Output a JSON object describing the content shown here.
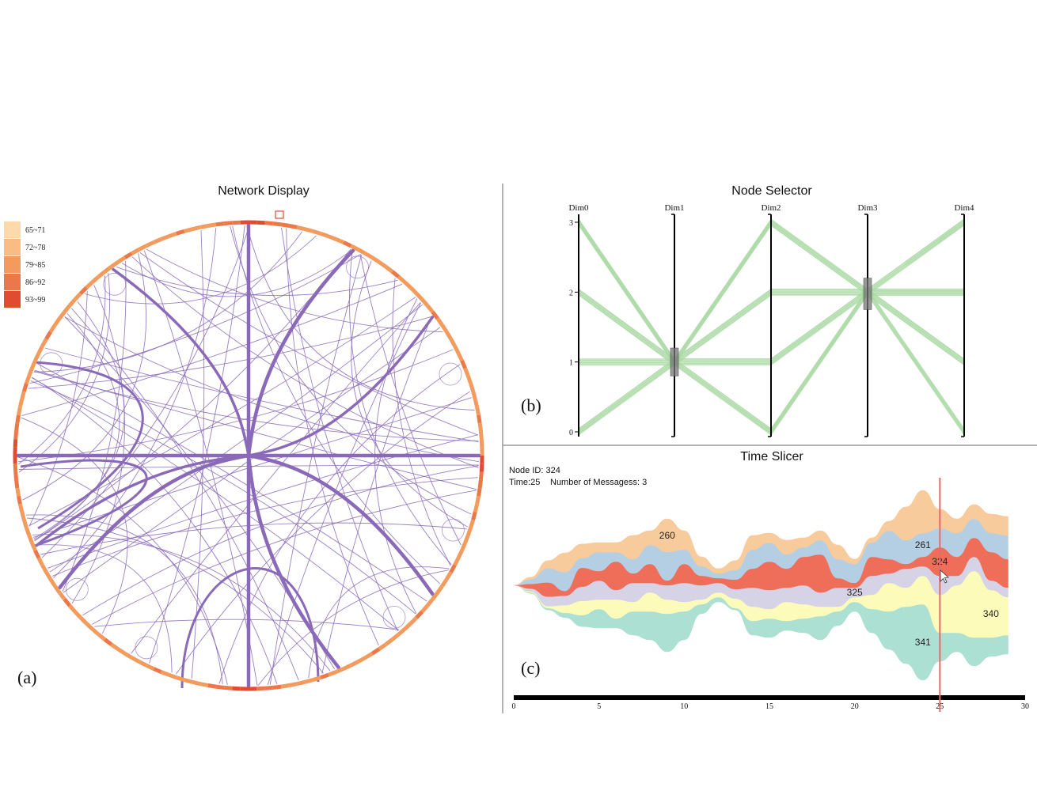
{
  "panels": {
    "network": {
      "title": "Network Display",
      "label": "(a)"
    },
    "selector": {
      "title": "Node Selector",
      "label": "(b)"
    },
    "slicer": {
      "title": "Time Slicer",
      "label": "(c)"
    }
  },
  "colors": {
    "edge": "#8a6ab8",
    "ring_low": "#f1a35d",
    "ring_high": "#e8322b",
    "pc_line": "#a9d8a3",
    "cursor": "#e46b6b",
    "timeline": "#000000"
  },
  "chart_data": [
    {
      "type": "chord",
      "title": "Network Display",
      "legend": {
        "placement": "top-left",
        "items": [
          {
            "label": "65~71",
            "color": "#fdd9ab"
          },
          {
            "label": "72~78",
            "color": "#f9bc83"
          },
          {
            "label": "79~85",
            "color": "#f39a5d"
          },
          {
            "label": "86~92",
            "color": "#ec7748"
          },
          {
            "label": "93~99",
            "color": "#e14b31"
          }
        ]
      },
      "hub_edges": [
        {
          "from_deg": -90,
          "to_deg": 0,
          "weight": 3
        },
        {
          "from_deg": 90,
          "to_deg": 0,
          "weight": 3
        },
        {
          "from_deg": 180,
          "to_deg": 0,
          "weight": 3
        },
        {
          "from_deg": 0,
          "to_deg": 0,
          "weight": 3
        },
        {
          "from_deg": -63,
          "to_deg": 0,
          "weight": 3
        },
        {
          "from_deg": 145,
          "to_deg": 0,
          "weight": 3
        },
        {
          "from_deg": 37,
          "to_deg": 0,
          "weight": 3
        },
        {
          "from_deg": 67,
          "to_deg": 0,
          "weight": 3
        },
        {
          "from_deg": 157,
          "to_deg": 0,
          "weight": 2
        },
        {
          "from_deg": -126,
          "to_deg": 0,
          "weight": 2
        },
        {
          "from_deg": -37,
          "to_deg": 0,
          "weight": 2
        }
      ]
    },
    {
      "type": "parallel-coordinates",
      "title": "Node Selector",
      "dimensions": [
        "Dim0",
        "Dim1",
        "Dim2",
        "Dim3",
        "Dim4"
      ],
      "ticks": [
        0,
        1,
        2,
        3
      ],
      "ylim": [
        0,
        3
      ],
      "brushes": [
        {
          "dim": "Dim1",
          "range": [
            0.8,
            1.2
          ]
        },
        {
          "dim": "Dim3",
          "range": [
            1.75,
            2.2
          ]
        }
      ],
      "lines": [
        [
          3,
          1,
          0,
          2,
          3
        ],
        [
          3,
          1,
          1,
          2,
          2
        ],
        [
          3,
          1,
          3,
          2,
          1
        ],
        [
          2,
          1,
          0,
          2,
          0
        ],
        [
          2,
          1,
          3,
          2,
          3
        ],
        [
          2,
          1,
          1,
          2,
          2
        ],
        [
          1,
          1,
          1,
          2,
          1
        ],
        [
          1,
          1,
          2,
          2,
          0
        ],
        [
          1,
          1,
          3,
          2,
          2
        ],
        [
          0,
          1,
          1,
          2,
          3
        ],
        [
          0,
          1,
          0,
          2,
          1
        ],
        [
          0,
          1,
          2,
          2,
          0
        ],
        [
          3,
          1,
          2,
          2,
          2
        ],
        [
          2,
          1,
          2,
          2,
          1
        ],
        [
          1,
          1,
          0,
          2,
          3
        ],
        [
          0,
          1,
          3,
          2,
          2
        ]
      ]
    },
    {
      "type": "area",
      "subtype": "streamgraph",
      "title": "Time Slicer",
      "info": {
        "node_line": "Node ID: 324",
        "time_line": "Time:25",
        "messages_line": "Number of Messagess: 3"
      },
      "xlim": [
        0,
        30
      ],
      "x_ticks": [
        "0",
        "5",
        "10",
        "15",
        "20",
        "25",
        "30"
      ],
      "cursor_x": 25,
      "x": [
        0,
        1,
        2,
        3,
        4,
        5,
        6,
        7,
        8,
        9,
        10,
        11,
        12,
        13,
        14,
        15,
        16,
        17,
        18,
        19,
        20,
        21,
        22,
        23,
        24,
        25,
        26,
        27,
        28,
        29
      ],
      "series": [
        {
          "name": "341",
          "color": "#abe0d2",
          "values": [
            0,
            0.1,
            0.2,
            0.5,
            1.2,
            2,
            1,
            2.5,
            3,
            4,
            3,
            1,
            0.5,
            0.2,
            1.5,
            2,
            1,
            1.5,
            2.5,
            1.5,
            1,
            2.5,
            4,
            6,
            8,
            3,
            2,
            3,
            2,
            2
          ]
        },
        {
          "name": "340",
          "color": "#fdfbb9",
          "values": [
            0,
            0.1,
            0.2,
            0.8,
            1.5,
            1,
            2,
            1,
            2,
            1.5,
            1,
            0.5,
            0.5,
            1,
            1.5,
            1,
            2,
            1.5,
            1,
            0.5,
            0.5,
            1.5,
            3,
            2,
            3,
            4,
            5,
            7,
            5,
            4
          ]
        },
        {
          "name": "325",
          "color": "#d6d3e6",
          "values": [
            0,
            0.3,
            1,
            1,
            1.5,
            2,
            1,
            2,
            1,
            1.5,
            2,
            1.5,
            1,
            1,
            2,
            2,
            1.5,
            2,
            1.5,
            2,
            1,
            2,
            1,
            2,
            1,
            2,
            1,
            1.5,
            1,
            1
          ]
        },
        {
          "name": "324",
          "color": "#ee6e59",
          "values": [
            0,
            0.5,
            1.5,
            0.5,
            2,
            1,
            3,
            1,
            2,
            0.5,
            2,
            1,
            0.5,
            1,
            2,
            3,
            2,
            3,
            4,
            1,
            0.5,
            2,
            1.5,
            0.5,
            1,
            3,
            2,
            2,
            3,
            3
          ]
        },
        {
          "name": "261",
          "color": "#b4cee3",
          "values": [
            0,
            0.5,
            1.5,
            2,
            1,
            2,
            1,
            1.5,
            2,
            3,
            1.5,
            1,
            0.5,
            1,
            2,
            2,
            1.5,
            1,
            1.5,
            2,
            2,
            1.5,
            3,
            2.5,
            2.5,
            2,
            2.5,
            2,
            2,
            2.5
          ]
        },
        {
          "name": "260",
          "color": "#f8cb9d",
          "values": [
            0,
            0.2,
            0.8,
            2,
            1.5,
            1,
            1,
            2.5,
            1.5,
            3.5,
            2,
            1,
            0.5,
            1,
            1.5,
            1,
            1.5,
            1,
            1,
            1.5,
            0.5,
            0.5,
            1,
            3.5,
            4.5,
            2,
            1.5,
            1.5,
            2,
            2
          ]
        }
      ],
      "labels": [
        {
          "name": "260",
          "x": 9
        },
        {
          "name": "261",
          "x": 24
        },
        {
          "name": "324",
          "x": 25
        },
        {
          "name": "325",
          "x": 20
        },
        {
          "name": "340",
          "x": 28
        },
        {
          "name": "341",
          "x": 24
        }
      ]
    }
  ]
}
